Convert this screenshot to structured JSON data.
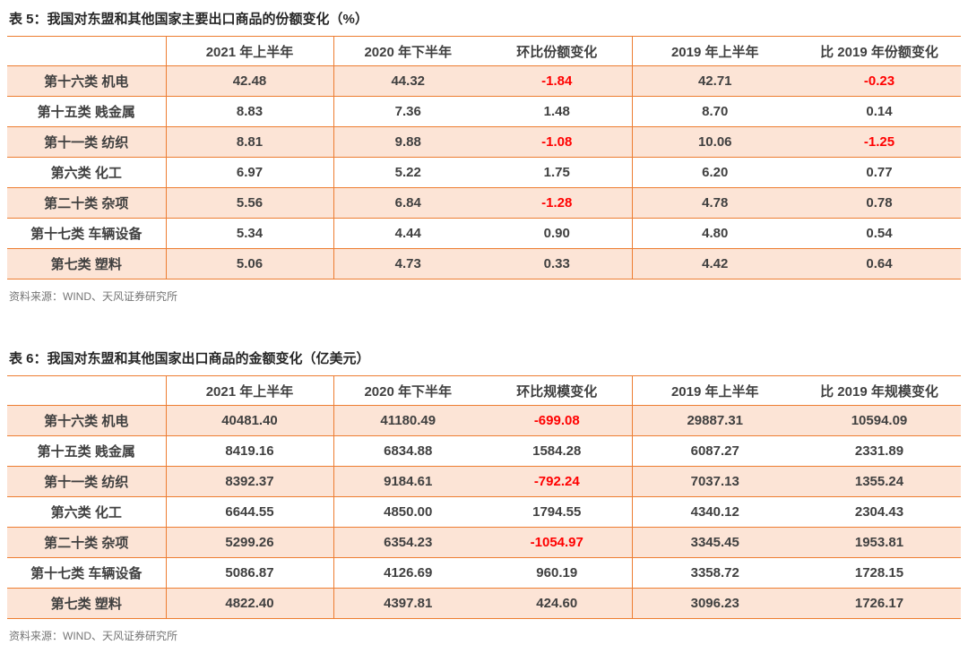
{
  "colors": {
    "accent_border": "#ED7D31",
    "row_fill": "#FCE4D6",
    "negative_value": "#FF0000",
    "cell_text": "#404040",
    "title_text": "#262626",
    "source_text": "#757575",
    "page_background": "#FFFFFF"
  },
  "tables": [
    {
      "title": "表 5：我国对东盟和其他国家主要出口商品的份额变化（%）",
      "columns": [
        "",
        "2021 年上半年",
        "2020 年下半年",
        "环比份额变化",
        "2019 年上半年",
        "比 2019 年份额变化"
      ],
      "rows": [
        {
          "label": "第十六类 机电",
          "values": [
            "42.48",
            "44.32",
            "-1.84",
            "42.71",
            "-0.23"
          ]
        },
        {
          "label": "第十五类 贱金属",
          "values": [
            "8.83",
            "7.36",
            "1.48",
            "8.70",
            "0.14"
          ]
        },
        {
          "label": "第十一类 纺织",
          "values": [
            "8.81",
            "9.88",
            "-1.08",
            "10.06",
            "-1.25"
          ]
        },
        {
          "label": "第六类 化工",
          "values": [
            "6.97",
            "5.22",
            "1.75",
            "6.20",
            "0.77"
          ]
        },
        {
          "label": "第二十类 杂项",
          "values": [
            "5.56",
            "6.84",
            "-1.28",
            "4.78",
            "0.78"
          ]
        },
        {
          "label": "第十七类 车辆设备",
          "values": [
            "5.34",
            "4.44",
            "0.90",
            "4.80",
            "0.54"
          ]
        },
        {
          "label": "第七类 塑料",
          "values": [
            "5.06",
            "4.73",
            "0.33",
            "4.42",
            "0.64"
          ]
        }
      ],
      "source": "资料来源：WIND、天风证券研究所"
    },
    {
      "title": "表 6：我国对东盟和其他国家出口商品的金额变化（亿美元）",
      "columns": [
        "",
        "2021 年上半年",
        "2020 年下半年",
        "环比规模变化",
        "2019 年上半年",
        "比 2019 年规模变化"
      ],
      "rows": [
        {
          "label": "第十六类 机电",
          "values": [
            "40481.40",
            "41180.49",
            "-699.08",
            "29887.31",
            "10594.09"
          ]
        },
        {
          "label": "第十五类 贱金属",
          "values": [
            "8419.16",
            "6834.88",
            "1584.28",
            "6087.27",
            "2331.89"
          ]
        },
        {
          "label": "第十一类 纺织",
          "values": [
            "8392.37",
            "9184.61",
            "-792.24",
            "7037.13",
            "1355.24"
          ]
        },
        {
          "label": "第六类 化工",
          "values": [
            "6644.55",
            "4850.00",
            "1794.55",
            "4340.12",
            "2304.43"
          ]
        },
        {
          "label": "第二十类 杂项",
          "values": [
            "5299.26",
            "6354.23",
            "-1054.97",
            "3345.45",
            "1953.81"
          ]
        },
        {
          "label": "第十七类 车辆设备",
          "values": [
            "5086.87",
            "4126.69",
            "960.19",
            "3358.72",
            "1728.15"
          ]
        },
        {
          "label": "第七类 塑料",
          "values": [
            "4822.40",
            "4397.81",
            "424.60",
            "3096.23",
            "1726.17"
          ]
        }
      ],
      "source": "资料来源：WIND、天风证券研究所"
    }
  ]
}
